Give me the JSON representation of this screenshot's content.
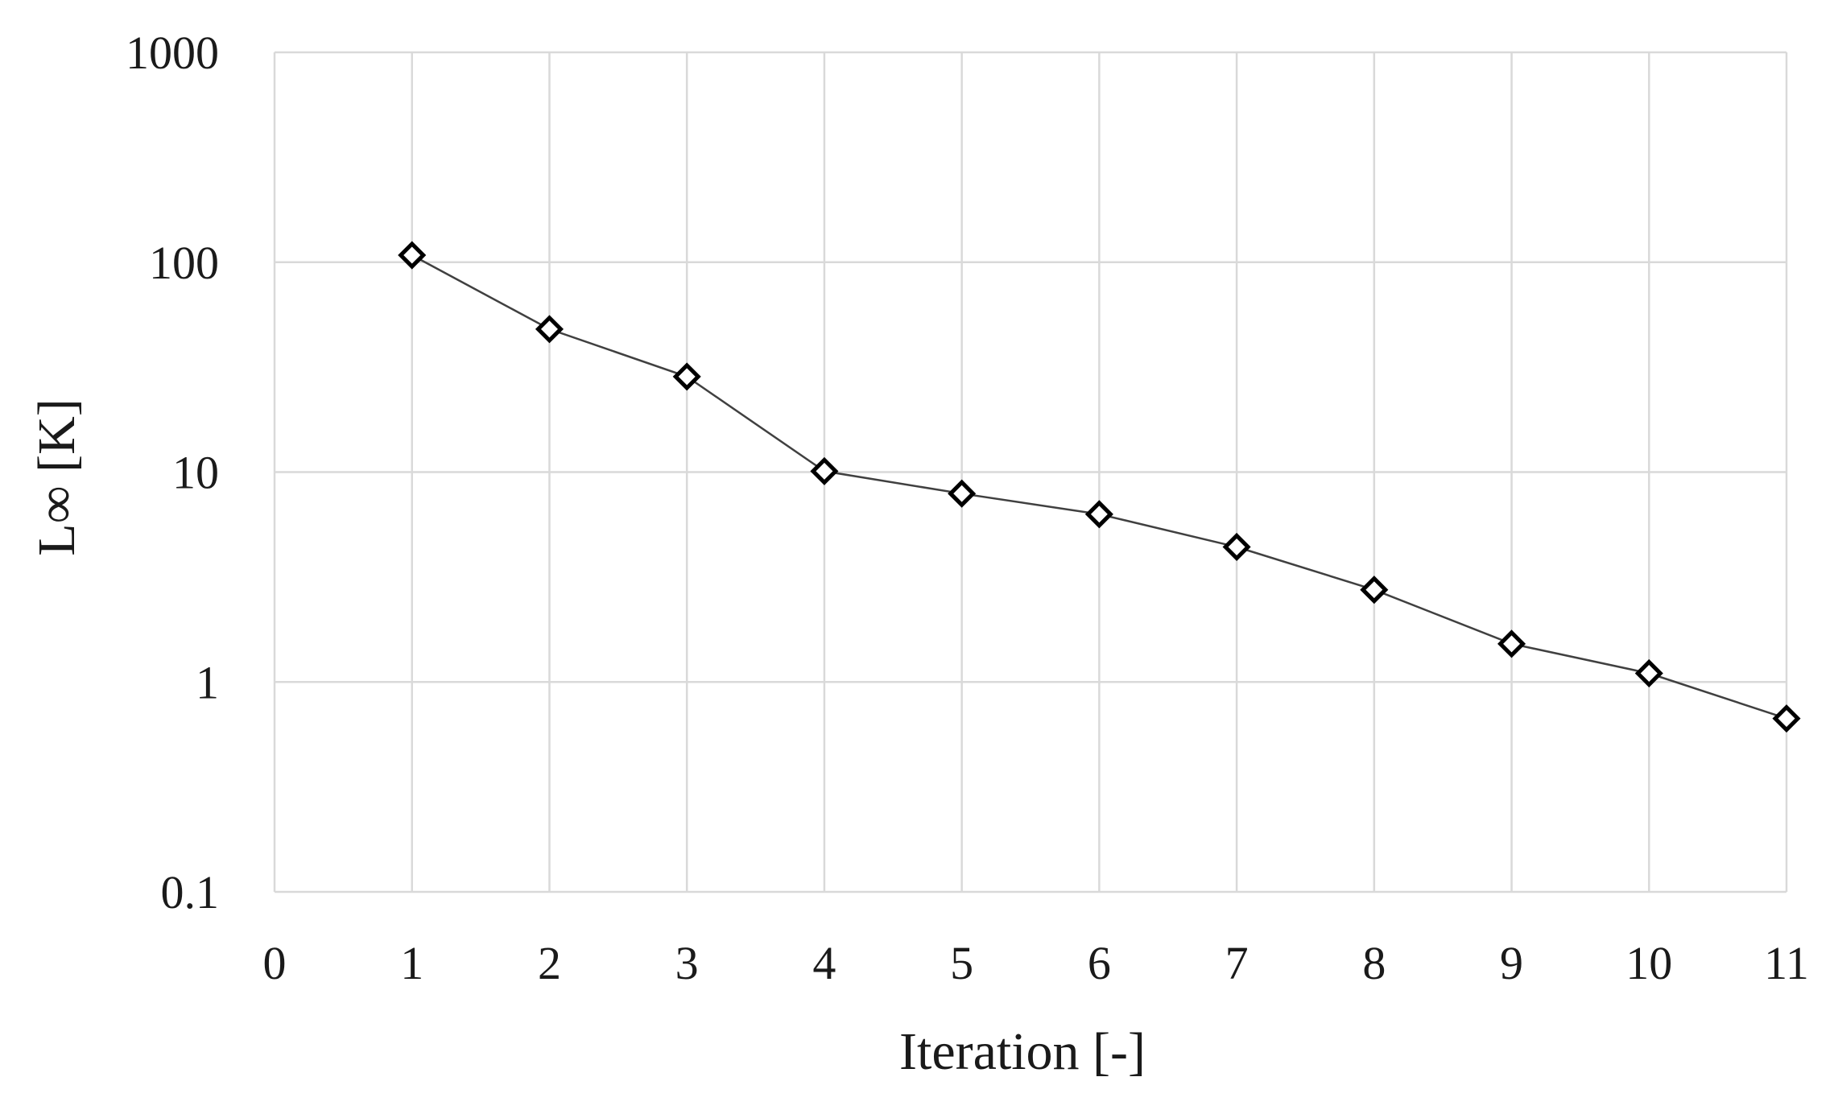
{
  "chart_data": {
    "type": "line",
    "title": "",
    "xlabel": "Iteration [-]",
    "ylabel": "L∞ [K]",
    "xlim": [
      0,
      11
    ],
    "ylim": [
      0.1,
      1000
    ],
    "yscale": "log",
    "grid": true,
    "legend": "none",
    "x_ticks": [
      "0",
      "1",
      "2",
      "3",
      "4",
      "5",
      "6",
      "7",
      "8",
      "9",
      "10",
      "11"
    ],
    "y_ticks": [
      "0.1",
      "1",
      "10",
      "100",
      "1000"
    ],
    "series": [
      {
        "marker": "diamond",
        "x": [
          1,
          2,
          3,
          4,
          5,
          6,
          7,
          8,
          9,
          10,
          11
        ],
        "y": [
          108,
          48,
          28.5,
          10.1,
          7.9,
          6.3,
          4.4,
          2.75,
          1.52,
          1.1,
          0.67
        ]
      }
    ]
  }
}
